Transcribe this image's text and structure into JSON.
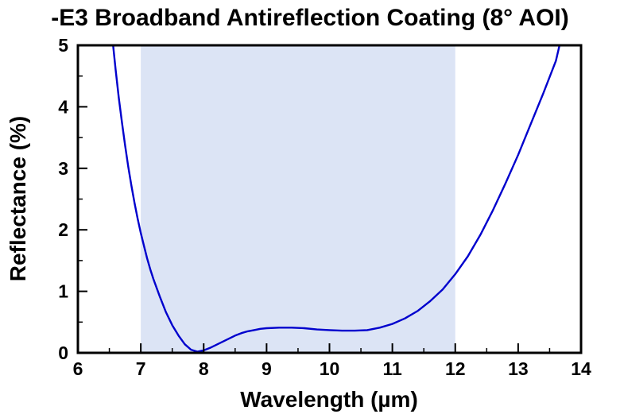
{
  "chart_data": {
    "type": "line",
    "title": "-E3 Broadband Antireflection Coating (8° AOI)",
    "xlabel": "Wavelength (µm)",
    "ylabel": "Reflectance (%)",
    "xlim": [
      6,
      14
    ],
    "ylim": [
      0,
      5
    ],
    "x_ticks": [
      6,
      7,
      8,
      9,
      10,
      11,
      12,
      13,
      14
    ],
    "y_ticks": [
      0,
      1,
      2,
      3,
      4,
      5
    ],
    "x_minor_ticks": [
      6.5,
      7.5,
      8.5,
      9.5,
      10.5,
      11.5,
      12.5,
      13.5
    ],
    "y_minor_ticks": [
      0.5,
      1.5,
      2.5,
      3.5,
      4.5
    ],
    "grid": false,
    "legend": false,
    "line_color": "#0000cd",
    "band": {
      "x_start": 7,
      "x_end": 12,
      "color": "#dce4f5"
    },
    "series": [
      {
        "name": "Reflectance (%)",
        "x": [
          6.55,
          6.6,
          6.65,
          6.7,
          6.75,
          6.8,
          6.85,
          6.9,
          6.95,
          7.0,
          7.05,
          7.1,
          7.15,
          7.2,
          7.3,
          7.4,
          7.5,
          7.6,
          7.7,
          7.8,
          7.9,
          8.0,
          8.1,
          8.2,
          8.3,
          8.4,
          8.5,
          8.6,
          8.7,
          8.8,
          8.9,
          9.0,
          9.2,
          9.4,
          9.6,
          9.8,
          10.0,
          10.2,
          10.4,
          10.6,
          10.8,
          11.0,
          11.2,
          11.4,
          11.6,
          11.8,
          12.0,
          12.2,
          12.4,
          12.6,
          12.8,
          13.0,
          13.2,
          13.4,
          13.6,
          13.68
        ],
        "y": [
          5.1,
          4.6,
          4.15,
          3.75,
          3.38,
          3.03,
          2.72,
          2.44,
          2.18,
          1.95,
          1.74,
          1.54,
          1.36,
          1.2,
          0.92,
          0.66,
          0.45,
          0.28,
          0.14,
          0.05,
          0.02,
          0.04,
          0.08,
          0.13,
          0.18,
          0.23,
          0.28,
          0.32,
          0.35,
          0.37,
          0.39,
          0.4,
          0.41,
          0.41,
          0.4,
          0.38,
          0.37,
          0.36,
          0.36,
          0.37,
          0.41,
          0.47,
          0.56,
          0.68,
          0.84,
          1.03,
          1.28,
          1.57,
          1.92,
          2.32,
          2.76,
          3.22,
          3.72,
          4.22,
          4.75,
          5.1
        ]
      }
    ]
  }
}
